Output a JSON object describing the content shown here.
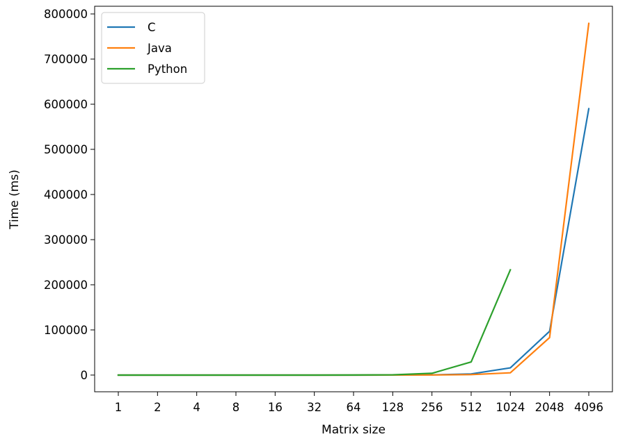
{
  "chart_data": {
    "type": "line",
    "title": "",
    "xlabel": "Matrix size",
    "ylabel": "Time (ms)",
    "categories": [
      "1",
      "2",
      "4",
      "8",
      "16",
      "32",
      "64",
      "128",
      "256",
      "512",
      "1024",
      "2048",
      "4096"
    ],
    "ylim": [
      -37000,
      817000
    ],
    "yticks": [
      0,
      100000,
      200000,
      300000,
      400000,
      500000,
      600000,
      700000,
      800000
    ],
    "grid": false,
    "legend_position": "top-left",
    "series": [
      {
        "name": "C",
        "color": "#1f77b4",
        "values": [
          0,
          0,
          0,
          0,
          0,
          0,
          0,
          100,
          400,
          2500,
          16000,
          97000,
          590000
        ]
      },
      {
        "name": "Java",
        "color": "#ff7f0e",
        "values": [
          0,
          0,
          0,
          0,
          0,
          0,
          0,
          100,
          300,
          1000,
          5000,
          83000,
          779000
        ]
      },
      {
        "name": "Python",
        "color": "#2ca02c",
        "values": [
          0,
          0,
          0,
          0,
          0,
          0,
          100,
          600,
          4000,
          29000,
          233000,
          null,
          null
        ]
      }
    ]
  }
}
